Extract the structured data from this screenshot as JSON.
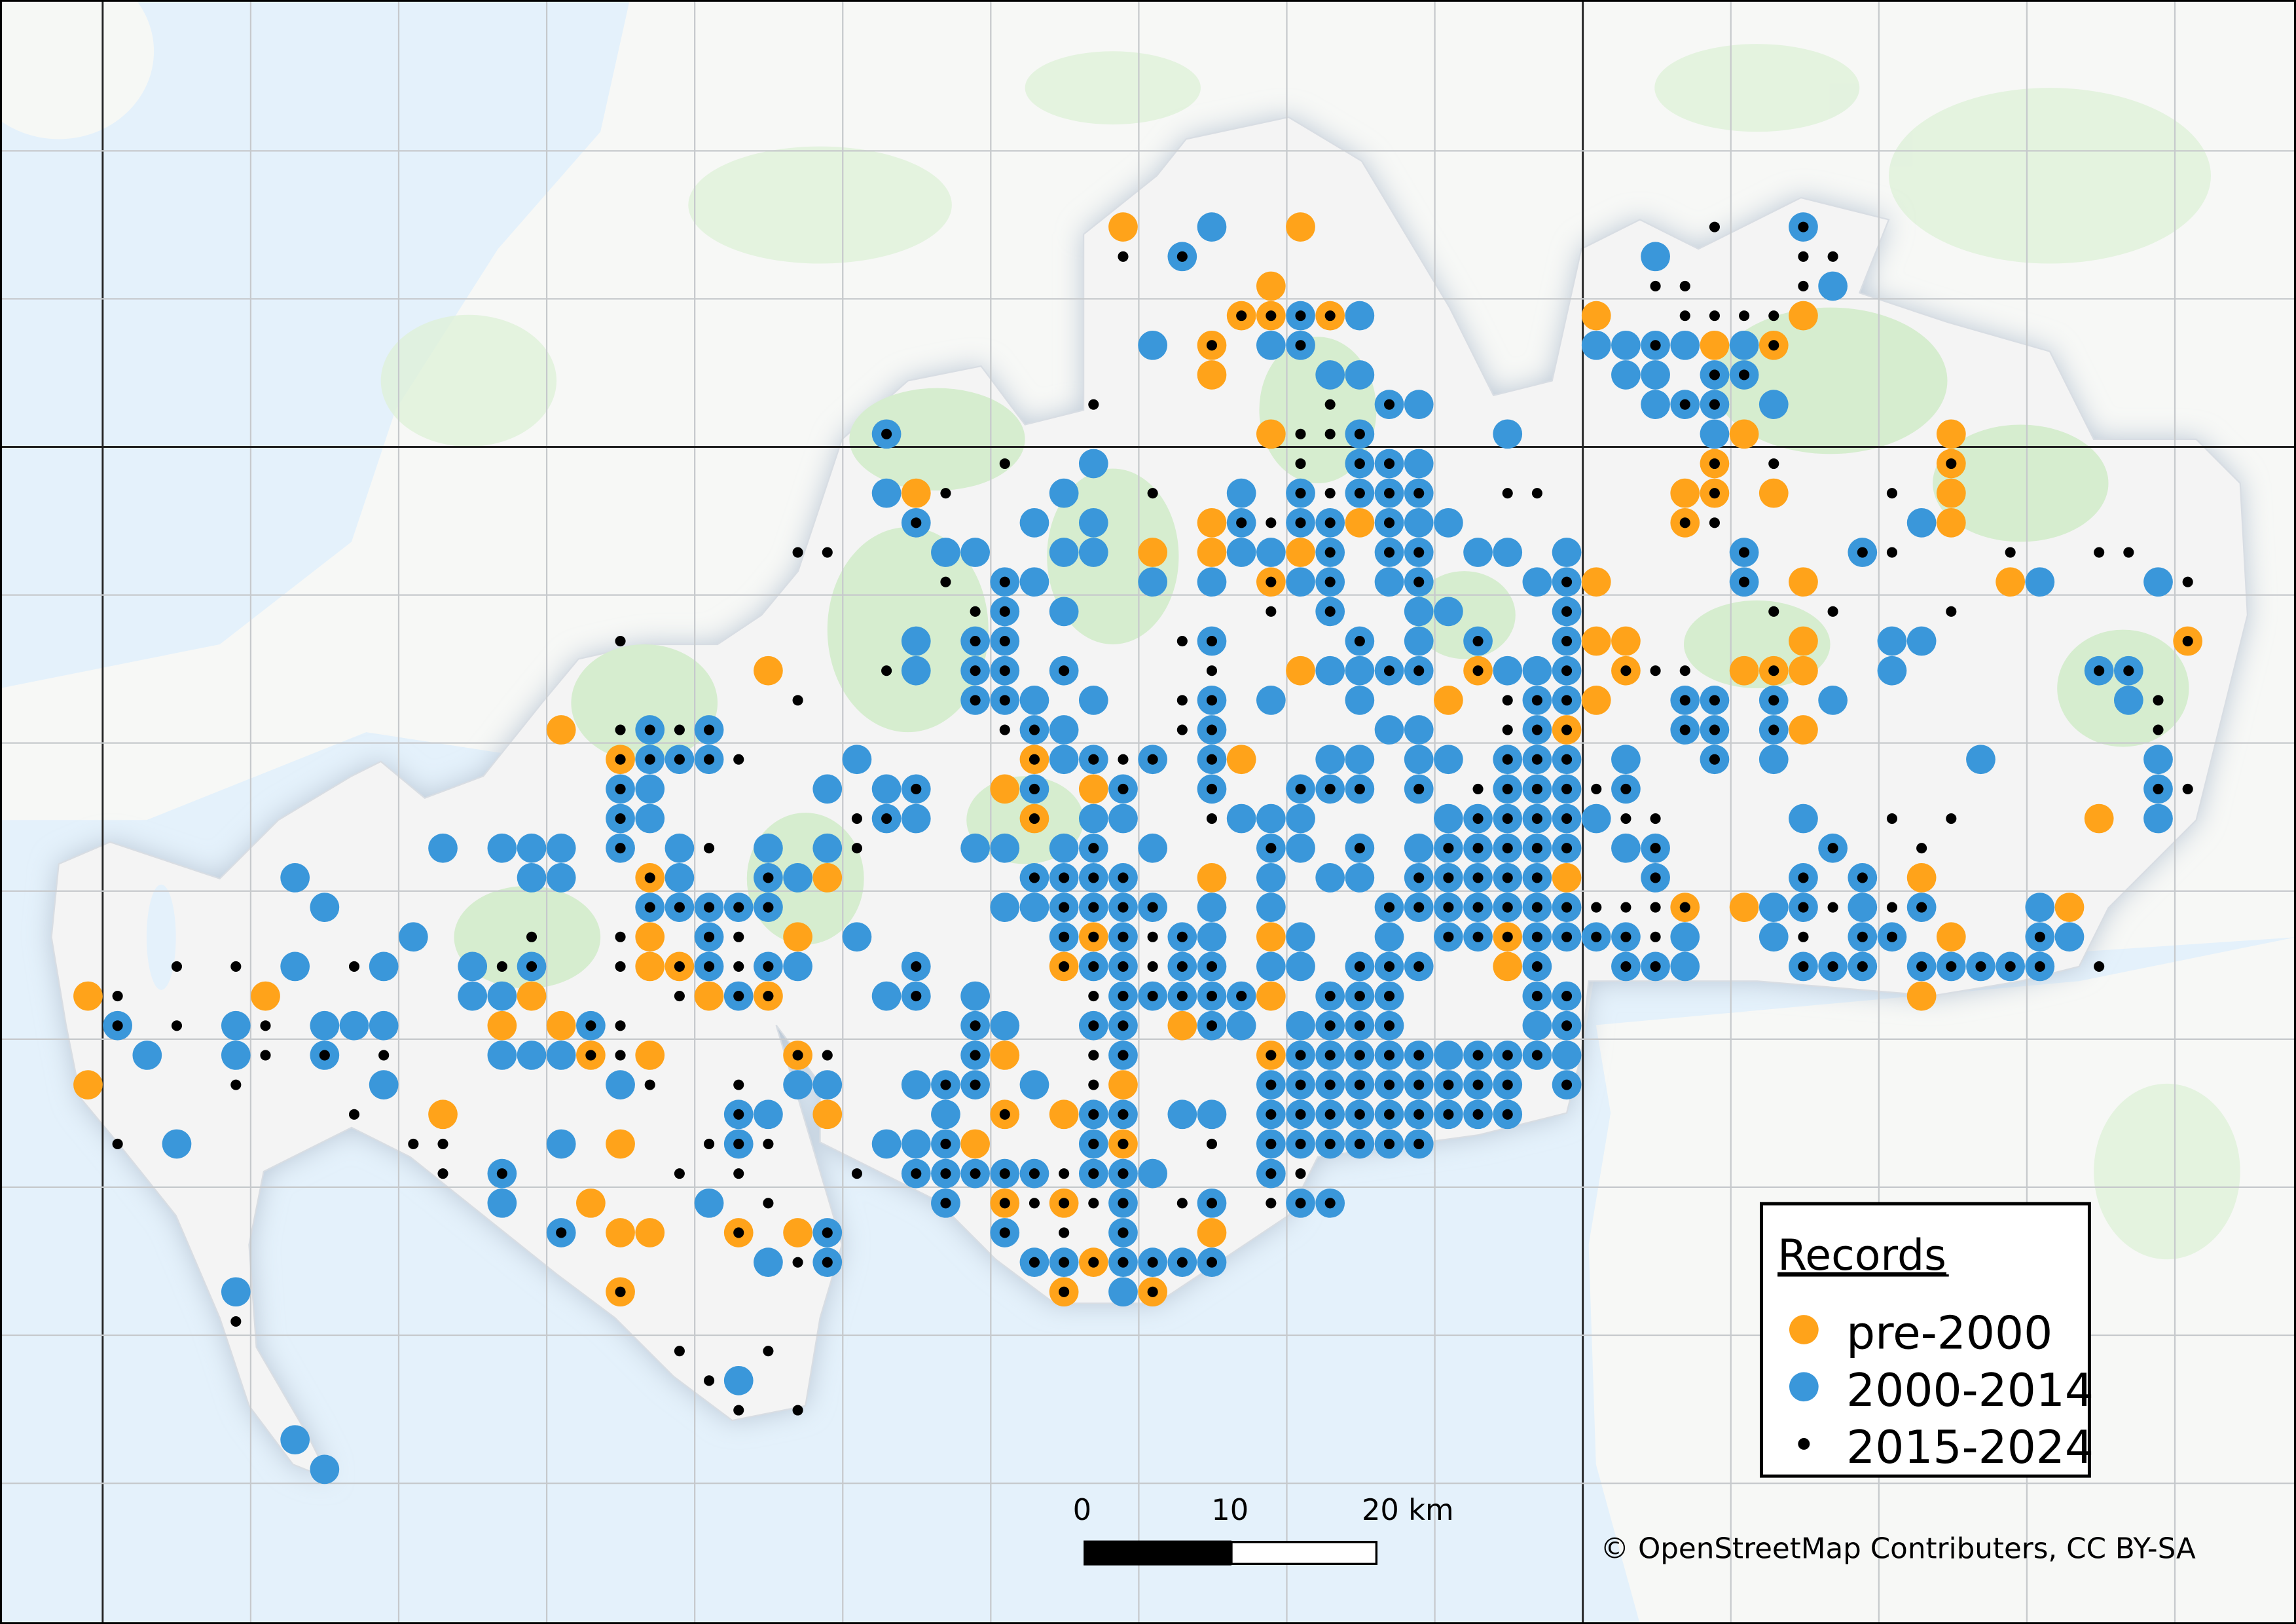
{
  "colors": {
    "pre_2000": "#ffa31a",
    "y2000_2014": "#3a97da",
    "y2015_2024": "#000000",
    "sea": "#e4f1fb",
    "land": "#f7f8f6",
    "woodland": "#d6edcf",
    "study_area": "#f4f4f4"
  },
  "legend": {
    "title": "Records",
    "items": [
      {
        "label": "pre-2000",
        "symbol": "orange-circle"
      },
      {
        "label": "2000-2014",
        "symbol": "blue-circle"
      },
      {
        "label": "2015-2024",
        "symbol": "black-dot"
      }
    ]
  },
  "scale_bar": {
    "labels": [
      "0",
      "10",
      "20 km"
    ]
  },
  "attribution": "© OpenStreetMap Contributers, CC BY-SA",
  "records_key": {
    "o": "pre-2000",
    "O": "pre-2000 + 2015-2024",
    "b": "2000-2014",
    "B": "2000-2014 + 2015-2024",
    "k": "2015-2024"
  },
  "records_rows": [
    "35o 38b 41o 55k 58B",
    "35k 37B 53b 58k 59k",
    "40o 53k 54k 58k 59b",
    "39O 40O 41B 42O 43b 51o 54k 55k 56k 57k 58o",
    "36b 38O 40b 41B 51b 52b 53B 54b 55o 56b 57O",
    "38o 42b 43b 52b 53b 55B 56B",
    "34k 42k 44B 45b 53b 54B 55B 57b",
    "27B 40o 41k 42k 43B 48b 55b 56o 63o",
    "31k 34b 41k 43B 44B 45b 55O 57k 63O",
    "27b 28o 29k 33b 36k 39b 41B 42k 43B 44B 45B 48k 49k 54o 55O 57o 61k 63o",
    "28B 32b 34b 38o 39B 40k 41B 42B 43o 44B 45b 46b 54O 55k 62b 63o",
    "24k 25k 29b 30b 33b 34b 36o 38o 39b 40b 41o 42B 44B 45B 47b 48b 50b 56B 60B 61k 65k 68k 69k",
    "29k 31B 32b 36b 38b 40O 41b 42B 44b 45B 49b 50B 51o 56B 58o 65o 66b 70b 71k",
    "30k 31B 33b 40k 42B 45b 46b 50B 57k 59k 63k",
    "18k 28b 30B 31B 37k 38B 43B 45b 47B 50B 51o 52o 58o 61b 62b 71O",
    "23o 27k 28b 30B 31B 33B 38k 41o 42b 43b 44B 45B 47O 48b 49b 50B 52O 53k 54k 56o 57O 58o 61b 68B 69B",
    "24k 30B 31B 32b 34b 37k 38B 40b 43b 46o 48k 49B 50B 51o 54B 55B 57B 59b 69b 70k",
    "16o 18k 19B 20k 21B 31k 32B 33b 37k 38B 44b 45b 48k 49B 50O 54B 55B 57B 58o 70k",
    "18O 19B 20B 21B 22k 26b 32O 33b 34B 35k 36B 38B 39o 42b 43b 45b 46b 48B 49B 50B 52b 55B 57b 64b 70b",
    "18B 19b 25b 27b 28B 31o 32B 34o 35B 38B 41B 42B 43B 45B 47k 48B 49B 50B 51k 52B 70B 71k",
    "18B 19b 26k 27B 28b 32O 34b 35b 38k 39b 40b 41b 46b 47B 48B 49B 50B 51b 52k 53k 58b 61k 63k 68o 70b",
    "12b 14b 15b 16b 18B 20b 21k 23b 25b 26k 30b 31b 33b 34B 36b 40B 41b 43B 45b 46B 47B 48B 49B 50B 52b 53B 59B 62k",
    "7b 15b 16b 19O 20b 23B 24b 25o 32B 33B 34B 35B 38o 40b 42b 43b 45B 46B 47B 48B 49B 50o 53B 58B 60B 62o",
    "8b 19B 20B 21B 22B 23B 31b 32b 33B 34B 35B 36B 38b 40b 44B 45B 46B 47B 48B 49B 50B 51k 52k 53k 54O 56o 57b 58B 59k 60b 61k 62B 66b 67o",
    "11b 15k 18k 19o 21B 22k 24o 26b 33B 34O 35B 36k 37B 38b 40o 41b 44b 46B 47B 48O 49B 50B 51B 52B 53k 54b 57b 58k 60B 61B 63o 66B 67b",
    "3k 5k 7b 9k 10b 13b 14k 15B 18k 19o 20O 21B 22k 23B 24b 28B 33O 34B 35B 36k 37B 38B 40b 41b 43B 44B 45B 48o 49B 52B 53B 54b 58B 59B 60B 62B 63B 64B 65B 66B 68k",
    "0o 1k 6o 13b 14b 15o 20k 21o 22B 23O 27b 28B 30b 34k 35B 36B 37B 38B 39B 40o 42B 43B 44B 49B 50B 62o",
    "1B 3k 5b 6k 8b 9b 10b 14o 16o 17B 18k 30B 31b 34B 35B 37o 38B 39b 41b 42B 43B 44B 49b 50B",
    "2b 5b 6k 8B 10k 14b 15b 16b 17O 18k 19o 24O 25k 30B 31o 34k 35B 40O 41B 42B 43B 44B 45B 46b 47B 48B 49B 50b",
    "0o 5k 10b 18b 19k 22k 24b 25b 28b 29B 30B 32b 34k 35o 40B 41B 42B 43B 44B 45B 46B 47B 48B 50B",
    "9k 12o 22B 23b 25o 29b 31O 33o 34B 35B 37b 38b 40B 41B 42B 43B 44B 45B 46B 47B 48B",
    "1k 3b 11k 12k 16b 18o 21k 22B 23k 27b 28b 29B 30o 34B 35O 38k 40B 41B 42B 43B 44B 45B",
    "12k 14B 20k 22k 26k 28B 29B 30B 31B 32B 33k 34B 35B 36b 40B 41k",
    "14b 17o 21b 23k 29B 31O 32k 33O 34k 35B 37k 38B 40k 41B 42B",
    "16B 18o 19o 22O 24o 25B 31B 33k 35B 38o",
    "23b 24k 25B 32B 33B 34O 35B 36B 37B 38B",
    "5b 18O 33O 35b 36O",
    "5k",
    "20k 23k",
    "21k 22b",
    "22k 24k",
    "7b",
    "8b"
  ]
}
